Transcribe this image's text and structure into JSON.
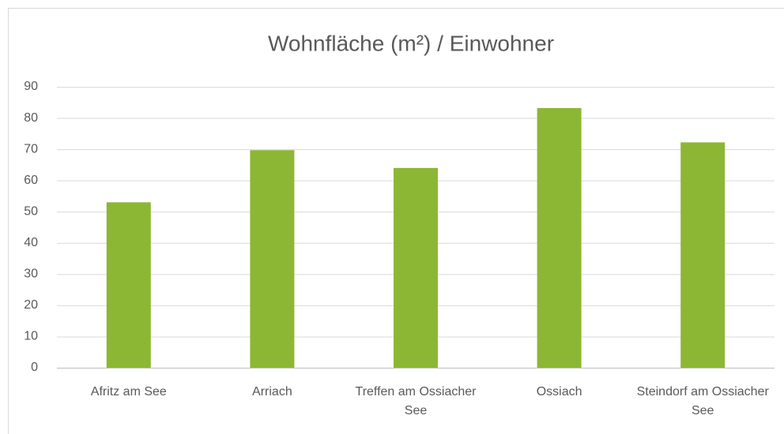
{
  "chart_data": {
    "type": "bar",
    "title": "Wohnfläche (m²) / Einwohner",
    "categories": [
      "Afritz am See",
      "Arriach",
      "Treffen am Ossiacher See",
      "Ossiach",
      "Steindorf am Ossiacher See"
    ],
    "values": [
      53,
      69.7,
      64,
      83.2,
      72.2
    ],
    "color": "#8cb734",
    "ylim": [
      0,
      90
    ],
    "yticks": [
      0,
      10,
      20,
      30,
      40,
      50,
      60,
      70,
      80,
      90
    ],
    "grid": true
  }
}
